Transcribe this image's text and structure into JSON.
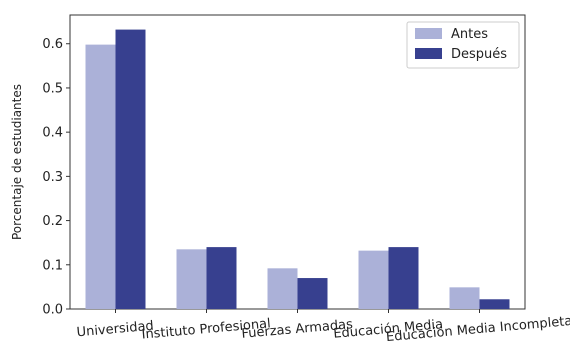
{
  "chart_data": {
    "type": "bar",
    "title": "",
    "xlabel": "",
    "ylabel": "Porcentaje de estudiantes",
    "categories": [
      "Universidad",
      "Instituto Profesional",
      "Fuerzas Armadas",
      "Educación Media",
      "Educación Media Incompleta"
    ],
    "series": [
      {
        "name": "Antes",
        "color": "#abb1d8",
        "values": [
          0.598,
          0.135,
          0.092,
          0.132,
          0.049
        ]
      },
      {
        "name": "Después",
        "color": "#37408f",
        "values": [
          0.632,
          0.14,
          0.07,
          0.14,
          0.022
        ]
      }
    ],
    "ylim": [
      0,
      0.665
    ],
    "yticks": [
      "0.0",
      "0.1",
      "0.2",
      "0.3",
      "0.4",
      "0.5",
      "0.6"
    ],
    "legend_position": "top-right",
    "grid": false
  }
}
